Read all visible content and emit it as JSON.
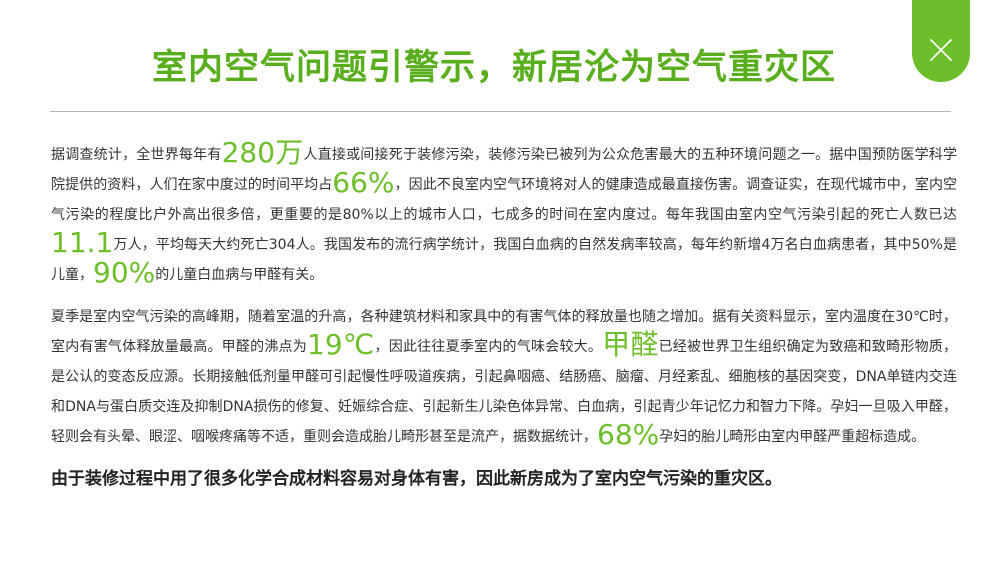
{
  "title": "室内空气问题引警示，新居沦为空气重灾区",
  "close_icon": "close-icon",
  "accent_color": "#6cbf2a",
  "paragraph1": {
    "t1": "据调查统计，全世界每年有",
    "h1": "280万",
    "t2": "人直接或间接死于装修污染，装修污染已被列为公众危害最大的五种环境问题之一。据中国预防医学科学院提供的资料，人们在家中度过的时间平均占",
    "h2": "66%",
    "t3": "，因此不良室内空气环境将对人的健康造成最直接伤害。调查证实，在现代城市中，室内空气污染的程度比户外高出很多倍，更重要的是80%以上的城市人口，七成多的时间在室内度过。每年我国由室内空气污染引起的死亡人数已达",
    "h3": "11.1",
    "t4": "万人，平均每天大约死亡304人。我国发布的流行病学统计，我国白血病的自然发病率较高，每年约新增4万名白血病患者，其中50%是儿童，",
    "h4": "90%",
    "t5": "的儿童白血病与甲醛有关。"
  },
  "paragraph2": {
    "t1": "夏季是室内空气污染的高峰期，随着室温的升高，各种建筑材料和家具中的有害气体的释放量也随之增加。据有关资料显示，室内温度在30℃时，室内有害气体释放量最高。甲醛的沸点为",
    "h1": "19℃",
    "t2": "，因此往往夏季室内的气味会较大。",
    "h2": "甲醛",
    "t3": "已经被世界卫生组织确定为致癌和致畸形物质，是公认的变态反应源。长期接触低剂量甲醛可引起慢性呼吸道疾病，引起鼻咽癌、结肠癌、脑瘤、月经紊乱、细胞核的基因突变，DNA单链内交连和DNA与蛋白质交连及抑制DNA损伤的修复、妊娠综合症、引起新生儿染色体异常、白血病，引起青少年记忆力和智力下降。孕妇一旦吸入甲醛，轻则会有头晕、眼涩、咽喉疼痛等不适，重则会造成胎儿畸形甚至是流产，据数据统计，",
    "h3": "68%",
    "t4": "孕妇的胎儿畸形由室内甲醛严重超标造成。"
  },
  "summary": "由于装修过程中用了很多化学合成材料容易对身体有害，因此新房成为了室内空气污染的重灾区。"
}
